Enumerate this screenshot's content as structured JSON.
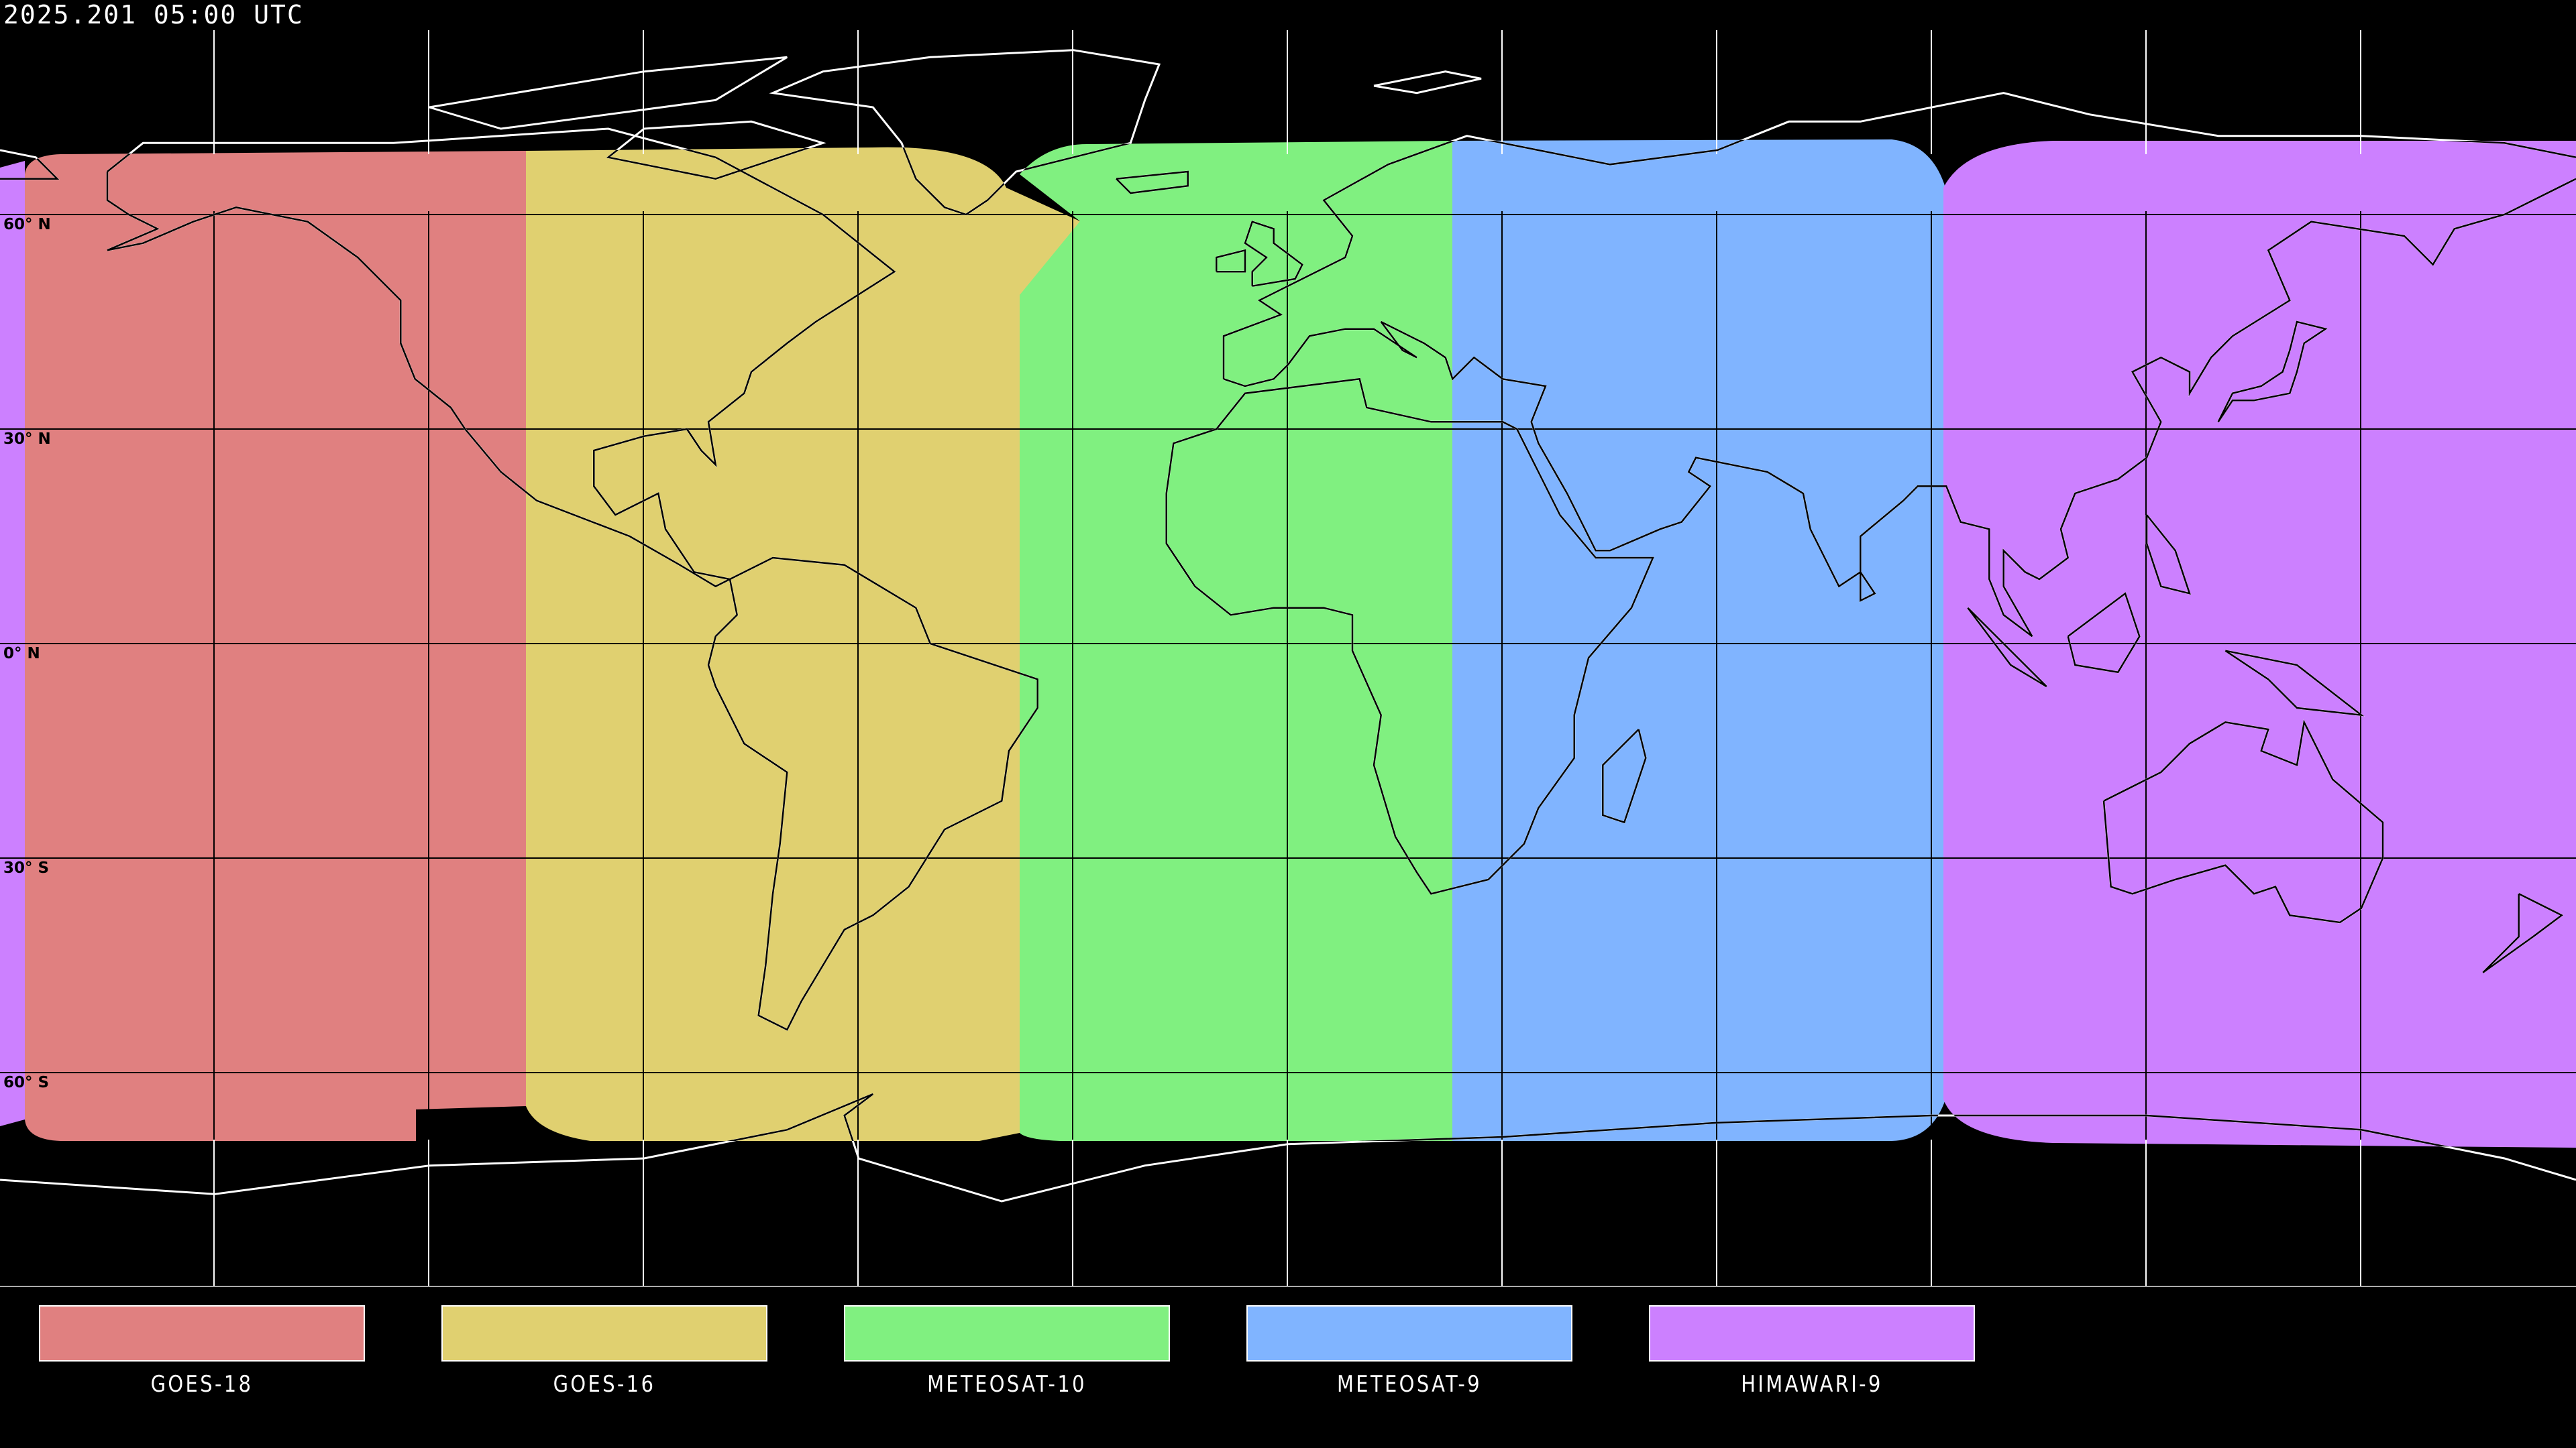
{
  "title": "2025.201 05:00 UTC",
  "latitude_labels": [
    "60° N",
    "30° N",
    "0° N",
    "30° S",
    "60° S"
  ],
  "satellites": [
    {
      "name": "GOES-18",
      "color": "#e08080"
    },
    {
      "name": "GOES-16",
      "color": "#e0d070"
    },
    {
      "name": "METEOSAT-10",
      "color": "#80f080"
    },
    {
      "name": "METEOSAT-9",
      "color": "#80b4ff"
    },
    {
      "name": "HIMAWARI-9",
      "color": "#cc80ff"
    }
  ],
  "map": {
    "projection": "equirectangular",
    "graticule_spacing_deg": 30,
    "land_outline_inside": "#000000",
    "land_outline_outside": "#ffffff"
  }
}
